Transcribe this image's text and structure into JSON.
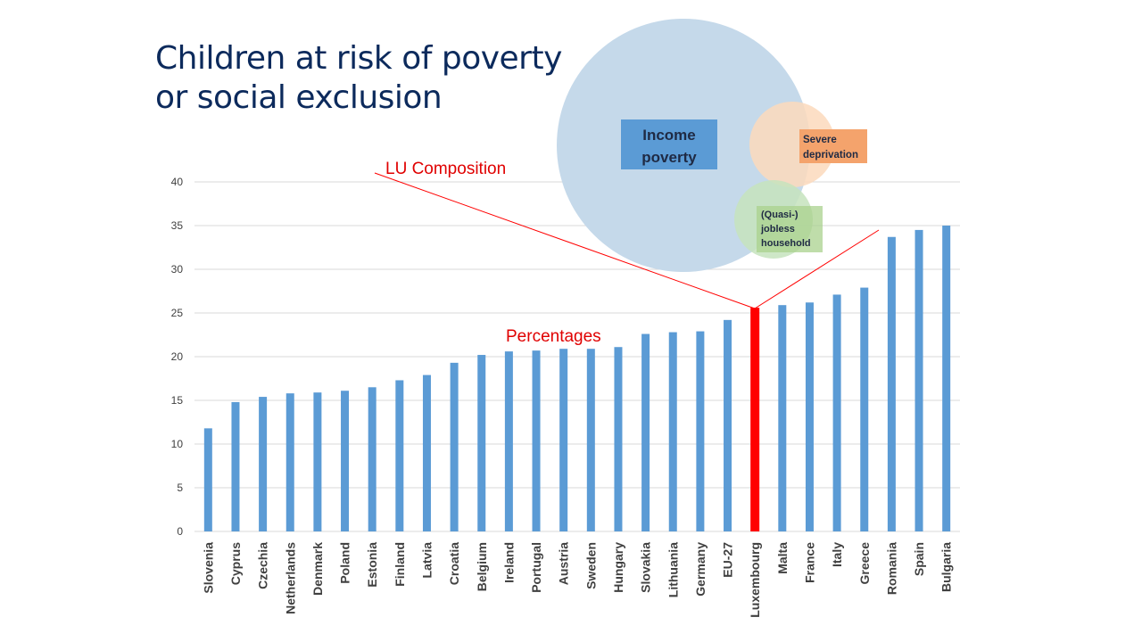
{
  "title_lines": [
    "Children at risk of poverty",
    "or social exclusion"
  ],
  "annotations": {
    "composition": "LU Composition",
    "percentages": "Percentages"
  },
  "venn": {
    "income_lines": [
      "Income",
      "poverty"
    ],
    "deprivation_lines": [
      "Severe",
      "deprivation"
    ],
    "jobless_lines": [
      "(Quasi-)",
      "jobless",
      "household"
    ]
  },
  "colors": {
    "bar": "#5b9bd5",
    "highlight": "#ff0000",
    "venn_income": "#c5d9ea",
    "venn_deprivation": "#fbd9bc",
    "venn_jobless": "#c6e3bd"
  },
  "chart_data": {
    "type": "bar",
    "categories": [
      "Slovenia",
      "Cyprus",
      "Czechia",
      "Netherlands",
      "Denmark",
      "Poland",
      "Estonia",
      "Finland",
      "Latvia",
      "Croatia",
      "Belgium",
      "Ireland",
      "Portugal",
      "Austria",
      "Sweden",
      "Hungary",
      "Slovakia",
      "Lithuania",
      "Germany",
      "EU-27",
      "Luxembourg",
      "Malta",
      "France",
      "Italy",
      "Greece",
      "Romania",
      "Spain",
      "Bulgaria"
    ],
    "values": [
      11.8,
      14.8,
      15.4,
      15.8,
      15.9,
      16.1,
      16.5,
      17.3,
      17.9,
      19.3,
      20.2,
      20.6,
      20.7,
      20.9,
      20.9,
      21.1,
      22.6,
      22.8,
      22.9,
      24.2,
      25.6,
      25.9,
      26.2,
      27.1,
      27.9,
      33.7,
      34.5,
      35.0
    ],
    "highlight_category": "Luxembourg",
    "ylim": [
      0,
      40
    ],
    "yticks": [
      0,
      5,
      10,
      15,
      20,
      25,
      30,
      35,
      40
    ],
    "grid": true,
    "xlabel": "",
    "ylabel": ""
  }
}
